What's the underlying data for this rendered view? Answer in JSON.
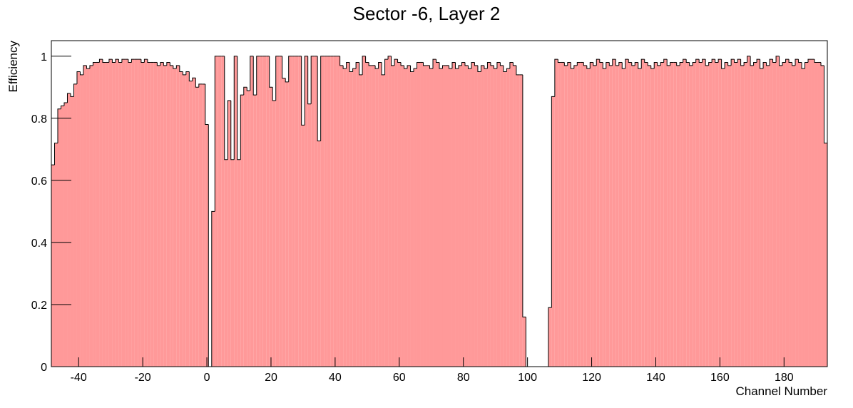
{
  "chart_data": {
    "type": "histogram",
    "title": "Sector -6, Layer 2",
    "x_label": "Channel Number",
    "y_label": "Efficiency",
    "color": "#ff9999",
    "edge_color": "#000000",
    "xlim": [
      -48.5,
      193.5
    ],
    "ylim": [
      0,
      1.05
    ],
    "xticks": [
      -40,
      -20,
      0,
      20,
      40,
      60,
      80,
      100,
      120,
      140,
      160,
      180
    ],
    "yticks": [
      0,
      0.2,
      0.4,
      0.6,
      0.8,
      1
    ],
    "bins": [
      -48.5,
      -47.5,
      -46.5,
      -45.5,
      -44.5,
      -43.5,
      -42.5,
      -41.5,
      -40.5,
      -39.5,
      -38.5,
      -37.5,
      -36.5,
      -35.5,
      -34.5,
      -33.5,
      -32.5,
      -31.5,
      -30.5,
      -29.5,
      -28.5,
      -27.5,
      -26.5,
      -25.5,
      -24.5,
      -23.5,
      -22.5,
      -21.5,
      -20.5,
      -19.5,
      -18.5,
      -17.5,
      -16.5,
      -15.5,
      -14.5,
      -13.5,
      -12.5,
      -11.5,
      -10.5,
      -9.5,
      -8.5,
      -7.5,
      -6.5,
      -5.5,
      -4.5,
      -3.5,
      -2.5,
      -1.5,
      -0.5,
      0.5,
      1.5,
      2.5,
      3.5,
      4.5,
      5.5,
      6.5,
      7.5,
      8.5,
      9.5,
      10.5,
      11.5,
      12.5,
      13.5,
      14.5,
      15.5,
      16.5,
      17.5,
      18.5,
      19.5,
      20.5,
      21.5,
      22.5,
      23.5,
      24.5,
      25.5,
      26.5,
      27.5,
      28.5,
      29.5,
      30.5,
      31.5,
      32.5,
      33.5,
      34.5,
      35.5,
      36.5,
      37.5,
      38.5,
      39.5,
      40.5,
      41.5,
      42.5,
      43.5,
      44.5,
      45.5,
      46.5,
      47.5,
      48.5,
      49.5,
      50.5,
      51.5,
      52.5,
      53.5,
      54.5,
      55.5,
      56.5,
      57.5,
      58.5,
      59.5,
      60.5,
      61.5,
      62.5,
      63.5,
      64.5,
      65.5,
      66.5,
      67.5,
      68.5,
      69.5,
      70.5,
      71.5,
      72.5,
      73.5,
      74.5,
      75.5,
      76.5,
      77.5,
      78.5,
      79.5,
      80.5,
      81.5,
      82.5,
      83.5,
      84.5,
      85.5,
      86.5,
      87.5,
      88.5,
      89.5,
      90.5,
      91.5,
      92.5,
      93.5,
      94.5,
      95.5,
      96.5,
      97.5,
      98.5,
      99.5,
      100.5,
      101.5,
      102.5,
      103.5,
      104.5,
      105.5,
      106.5,
      107.5,
      108.5,
      109.5,
      110.5,
      111.5,
      112.5,
      113.5,
      114.5,
      115.5,
      116.5,
      117.5,
      118.5,
      119.5,
      120.5,
      121.5,
      122.5,
      123.5,
      124.5,
      125.5,
      126.5,
      127.5,
      128.5,
      129.5,
      130.5,
      131.5,
      132.5,
      133.5,
      134.5,
      135.5,
      136.5,
      137.5,
      138.5,
      139.5,
      140.5,
      141.5,
      142.5,
      143.5,
      144.5,
      145.5,
      146.5,
      147.5,
      148.5,
      149.5,
      150.5,
      151.5,
      152.5,
      153.5,
      154.5,
      155.5,
      156.5,
      157.5,
      158.5,
      159.5,
      160.5,
      161.5,
      162.5,
      163.5,
      164.5,
      165.5,
      166.5,
      167.5,
      168.5,
      169.5,
      170.5,
      171.5,
      172.5,
      173.5,
      174.5,
      175.5,
      176.5,
      177.5,
      178.5,
      179.5,
      180.5,
      181.5,
      182.5,
      183.5,
      184.5,
      185.5,
      186.5,
      187.5,
      188.5,
      189.5,
      190.5,
      191.5,
      192.5,
      193.5
    ],
    "values": [
      0.65,
      0.72,
      0.83,
      0.84,
      0.85,
      0.88,
      0.87,
      0.91,
      0.95,
      0.94,
      0.97,
      0.96,
      0.97,
      0.98,
      0.98,
      0.99,
      0.98,
      0.98,
      0.99,
      0.98,
      0.99,
      0.98,
      0.99,
      0.99,
      0.98,
      0.99,
      0.99,
      0.99,
      0.98,
      0.99,
      0.98,
      0.98,
      0.98,
      0.97,
      0.98,
      0.97,
      0.98,
      0.97,
      0.96,
      0.97,
      0.95,
      0.94,
      0.95,
      0.92,
      0.93,
      0.9,
      0.91,
      0.91,
      0.78,
      0,
      0.5,
      1,
      1,
      1,
      0.667,
      0.857,
      0.667,
      1,
      0.667,
      0.875,
      0.9,
      0.889,
      1,
      0.875,
      1,
      1,
      1,
      1,
      0.9,
      0.857,
      1,
      1,
      0.929,
      0.917,
      1,
      1,
      1,
      1,
      0.778,
      1,
      0.846,
      1,
      1,
      0.727,
      1,
      1,
      1,
      1,
      1,
      1,
      0.97,
      0.96,
      0.98,
      0.95,
      0.96,
      0.98,
      0.94,
      1,
      0.98,
      0.97,
      0.97,
      0.96,
      0.98,
      0.94,
      0.99,
      1,
      0.97,
      0.99,
      0.98,
      0.97,
      0.96,
      0.97,
      0.95,
      0.96,
      0.98,
      0.98,
      0.97,
      0.97,
      0.96,
      0.99,
      0.98,
      0.96,
      0.97,
      0.97,
      0.96,
      0.98,
      0.96,
      0.97,
      0.98,
      0.97,
      0.96,
      0.98,
      0.97,
      0.95,
      0.97,
      0.96,
      0.98,
      0.97,
      0.96,
      0.98,
      0.97,
      0.95,
      0.96,
      0.98,
      0.97,
      0.94,
      0.94,
      0.16,
      0,
      0,
      0,
      0,
      0,
      0,
      0,
      0.19,
      0.87,
      0.99,
      0.98,
      0.98,
      0.97,
      0.98,
      0.96,
      0.97,
      0.98,
      0.98,
      0.97,
      0.96,
      0.98,
      0.97,
      0.99,
      0.98,
      0.96,
      0.98,
      0.97,
      0.99,
      0.97,
      0.98,
      0.96,
      0.99,
      0.98,
      0.97,
      0.98,
      0.96,
      0.99,
      0.98,
      0.97,
      0.96,
      0.98,
      0.97,
      0.98,
      0.99,
      0.97,
      0.98,
      0.98,
      0.97,
      0.98,
      0.99,
      0.98,
      0.97,
      0.98,
      0.99,
      0.98,
      0.99,
      0.97,
      0.98,
      0.99,
      0.98,
      0.99,
      0.96,
      0.98,
      0.97,
      0.99,
      0.98,
      0.99,
      0.97,
      0.98,
      1,
      0.97,
      0.98,
      0.99,
      0.96,
      0.98,
      0.97,
      0.99,
      0.98,
      1,
      0.97,
      0.98,
      0.99,
      0.98,
      0.97,
      0.99,
      0.98,
      0.96,
      0.98,
      0.99,
      0.99,
      0.98,
      0.98,
      0.97,
      0.72
    ]
  }
}
